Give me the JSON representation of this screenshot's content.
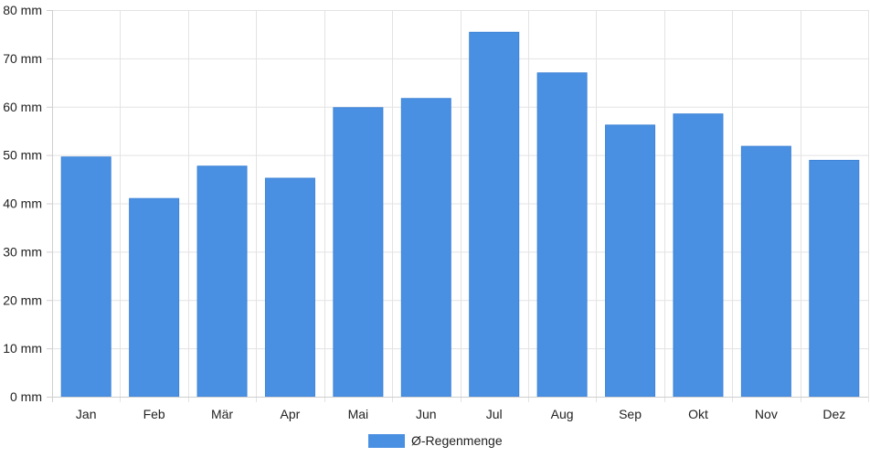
{
  "chart_data": {
    "type": "bar",
    "categories": [
      "Jan",
      "Feb",
      "Mär",
      "Apr",
      "Mai",
      "Jun",
      "Jul",
      "Aug",
      "Sep",
      "Okt",
      "Nov",
      "Dez"
    ],
    "series": [
      {
        "name": "Ø-Regenmenge",
        "values": [
          49.6,
          41.0,
          47.7,
          45.2,
          59.8,
          61.7,
          75.4,
          67.0,
          56.2,
          58.5,
          51.8,
          48.9
        ],
        "color": "#4a90e2"
      }
    ],
    "y_unit_suffix": " mm",
    "yticks": [
      0,
      10,
      20,
      30,
      40,
      50,
      60,
      70,
      80
    ],
    "ylim": [
      0,
      80
    ],
    "grid": true,
    "legend_position": "bottom-center"
  }
}
